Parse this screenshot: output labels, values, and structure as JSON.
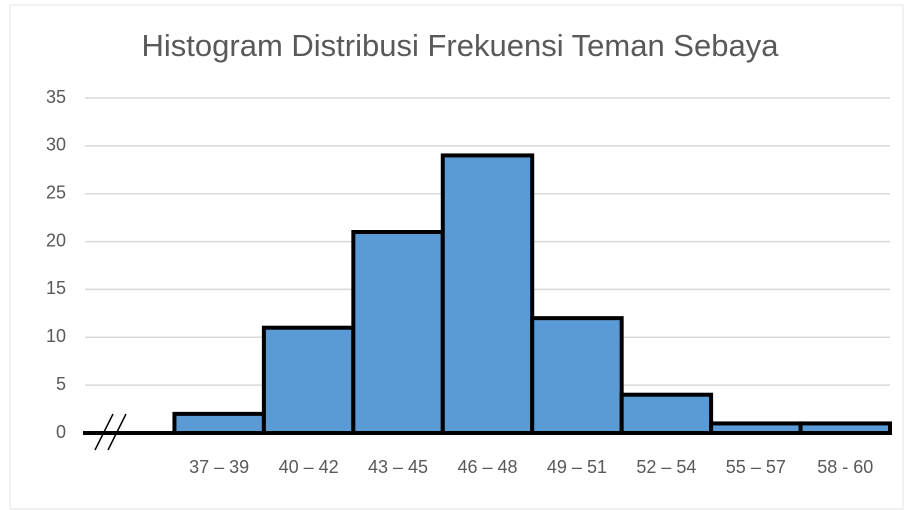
{
  "chart_data": {
    "type": "bar",
    "title": "Histogram Distribusi Frekuensi Teman Sebaya",
    "categories": [
      null,
      "37 – 39",
      "40 – 42",
      "43 – 45",
      "46 – 48",
      "49 – 51",
      "52 – 54",
      "55 – 57",
      "58 - 60"
    ],
    "values": [
      0,
      2,
      11,
      21,
      29,
      12,
      4,
      1,
      1
    ],
    "color": "#5b9bd5",
    "edge_color": "#000000",
    "ylim": [
      0,
      35
    ],
    "yticks": [
      0,
      5,
      10,
      15,
      20,
      25,
      30,
      35
    ],
    "grid": true
  }
}
